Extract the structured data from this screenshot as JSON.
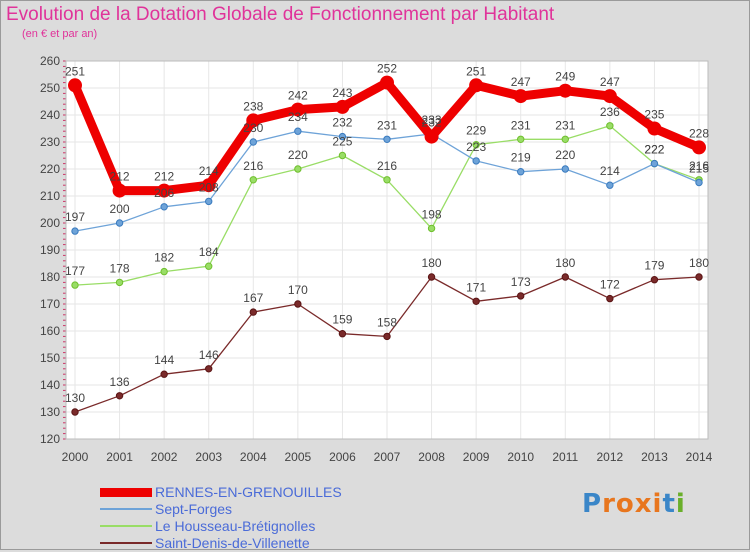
{
  "title": "Evolution de la Dotation Globale de Fonctionnement par Habitant",
  "subtitle": "(en € et par an)",
  "logo_text": "Proxiti",
  "chart_data": {
    "type": "line",
    "x": [
      "2000",
      "2001",
      "2002",
      "2003",
      "2004",
      "2005",
      "2006",
      "2007",
      "2008",
      "2009",
      "2010",
      "2011",
      "2012",
      "2013",
      "2014"
    ],
    "ylim": [
      120,
      260
    ],
    "yticks": [
      120,
      130,
      140,
      150,
      160,
      170,
      180,
      190,
      200,
      210,
      220,
      230,
      240,
      250,
      260
    ],
    "grid": true,
    "legend_position": "bottom-left",
    "series": [
      {
        "name": "RENNES-EN-GRENOUILLES",
        "color": "#ee0000",
        "values": [
          251,
          212,
          212,
          214,
          238,
          242,
          243,
          252,
          232,
          251,
          247,
          249,
          247,
          235,
          228
        ],
        "labels": [
          "251",
          "212",
          "212",
          "214",
          "238",
          "242",
          "243",
          "252",
          "232",
          "251",
          "247",
          "249",
          "247",
          "235",
          "228"
        ]
      },
      {
        "name": "Sept-Forges",
        "color": "#6ea3d8",
        "values": [
          197,
          200,
          206,
          208,
          230,
          234,
          232,
          231,
          233,
          223,
          219,
          220,
          214,
          222,
          215
        ],
        "labels": [
          "197",
          "200",
          "206",
          "208",
          "230",
          "234",
          "232",
          "231",
          "233",
          "223",
          "219",
          "220",
          "214",
          "222",
          "215"
        ]
      },
      {
        "name": "Le Housseau-Brétignolles",
        "color": "#99dd66",
        "values": [
          177,
          178,
          182,
          184,
          216,
          220,
          225,
          216,
          198,
          229,
          231,
          231,
          236,
          222,
          216
        ],
        "labels": [
          "177",
          "178",
          "182",
          "184",
          "216",
          "220",
          "225",
          "216",
          "198",
          "229",
          "231",
          "231",
          "236",
          "222",
          "216"
        ]
      },
      {
        "name": "Saint-Denis-de-Villenette",
        "color": "#7a2a2a",
        "values": [
          130,
          136,
          144,
          146,
          167,
          170,
          159,
          158,
          180,
          171,
          173,
          180,
          172,
          179,
          180
        ],
        "labels": [
          "130",
          "136",
          "144",
          "146",
          "167",
          "170",
          "159",
          "158",
          "180",
          "171",
          "173",
          "180",
          "172",
          "179",
          "180"
        ]
      }
    ]
  }
}
